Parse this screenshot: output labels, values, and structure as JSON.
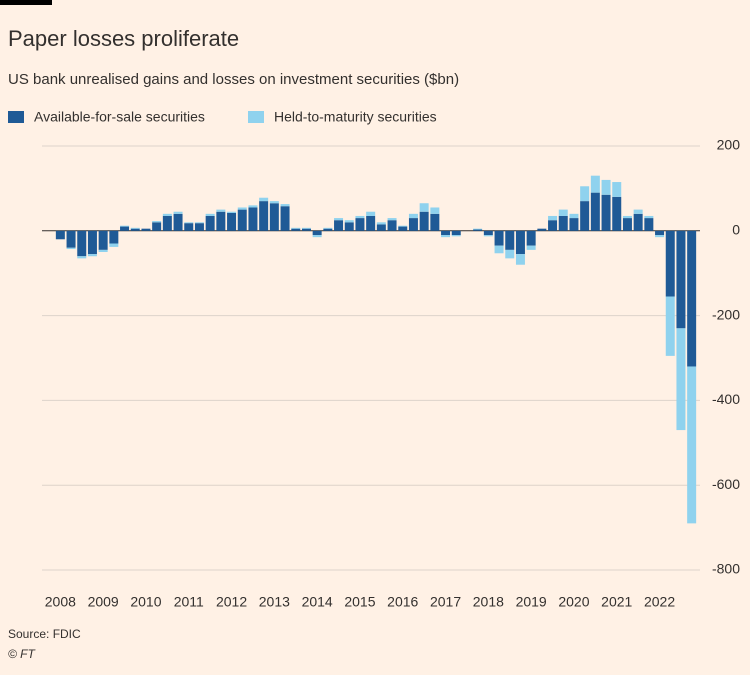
{
  "chart_data": {
    "type": "bar",
    "stacked": true,
    "title": "Paper losses proliferate",
    "subtitle": "US bank unrealised gains and losses on investment securities ($bn)",
    "source": "Source: FDIC",
    "credit": "© FT",
    "categories": [
      "2008",
      null,
      null,
      null,
      "2009",
      null,
      null,
      null,
      "2010",
      null,
      null,
      null,
      "2011",
      null,
      null,
      null,
      "2012",
      null,
      null,
      null,
      "2013",
      null,
      null,
      null,
      "2014",
      null,
      null,
      null,
      "2015",
      null,
      null,
      null,
      "2016",
      null,
      null,
      null,
      "2017",
      null,
      null,
      null,
      "2018",
      null,
      null,
      null,
      "2019",
      null,
      null,
      null,
      "2020",
      null,
      null,
      null,
      "2021",
      null,
      null,
      null,
      "2022",
      null,
      null,
      null
    ],
    "series": [
      {
        "name": "Available-for-sale securities",
        "color": "#1f5a96",
        "values": [
          -20,
          -40,
          -60,
          -55,
          -45,
          -30,
          10,
          5,
          5,
          20,
          35,
          40,
          18,
          18,
          35,
          45,
          42,
          50,
          55,
          70,
          65,
          58,
          5,
          5,
          -10,
          5,
          25,
          20,
          30,
          35,
          15,
          25,
          10,
          30,
          45,
          40,
          -10,
          -10,
          0,
          3,
          -10,
          -35,
          -45,
          -55,
          -35,
          5,
          25,
          35,
          30,
          70,
          90,
          85,
          80,
          30,
          40,
          30,
          -10,
          -155,
          -230,
          -320
        ]
      },
      {
        "name": "Held-to-maturity securities",
        "color": "#8fd2ee",
        "values": [
          0,
          -3,
          -5,
          -5,
          -5,
          -8,
          2,
          2,
          0,
          3,
          5,
          5,
          2,
          2,
          5,
          5,
          3,
          5,
          5,
          8,
          5,
          5,
          2,
          2,
          -5,
          2,
          5,
          5,
          5,
          10,
          5,
          5,
          2,
          10,
          20,
          15,
          -5,
          -3,
          0,
          2,
          -3,
          -18,
          -20,
          -25,
          -10,
          0,
          10,
          15,
          10,
          35,
          40,
          35,
          35,
          5,
          10,
          5,
          -5,
          -140,
          -240,
          -370
        ]
      }
    ],
    "ylim": [
      -800,
      200
    ],
    "yticks": [
      200,
      0,
      -200,
      -400,
      -600,
      -800
    ],
    "grid": true,
    "legend": "top-left"
  }
}
